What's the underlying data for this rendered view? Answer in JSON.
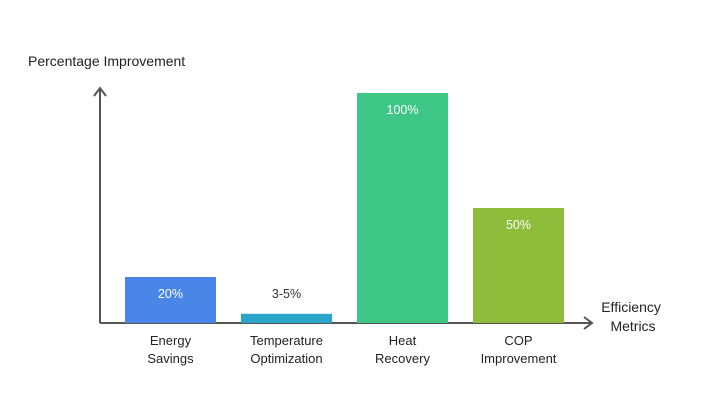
{
  "chart_data": {
    "type": "bar",
    "ylabel": "Percentage Improvement",
    "xlabel": [
      "Efficiency",
      "Metrics"
    ],
    "ylim": [
      0,
      110
    ],
    "grid": false,
    "legend": "none",
    "categories": [
      [
        "Energy",
        "Savings"
      ],
      [
        "Temperature",
        "Optimization"
      ],
      [
        "Heat",
        "Recovery"
      ],
      [
        "COP",
        "Improvement"
      ]
    ],
    "values": [
      20,
      4,
      100,
      50
    ],
    "value_labels": [
      "20%",
      "3-5%",
      "100%",
      "50%"
    ],
    "colors": [
      "#4a86e8",
      "#2aa5c9",
      "#3dc686",
      "#8fbc3b"
    ],
    "axis_color": "#555555"
  }
}
